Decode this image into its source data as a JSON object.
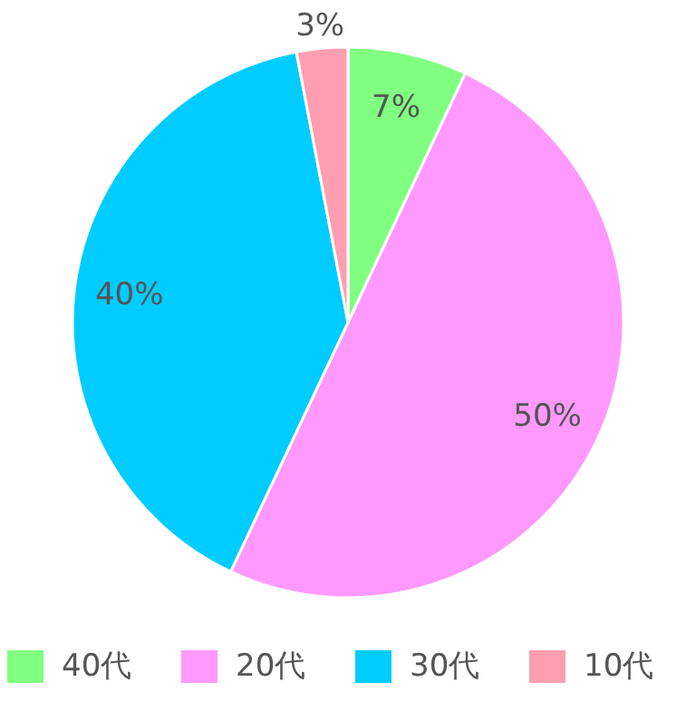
{
  "chart_data": {
    "type": "pie",
    "categories": [
      "40代",
      "20代",
      "30代",
      "10代"
    ],
    "values": [
      7,
      50,
      40,
      3
    ],
    "colors": [
      "#80ff80",
      "#ff99ff",
      "#00ccff",
      "#ff9eb0"
    ],
    "value_labels": [
      "7%",
      "50%",
      "40%",
      "3%"
    ],
    "legend": "bottom"
  }
}
